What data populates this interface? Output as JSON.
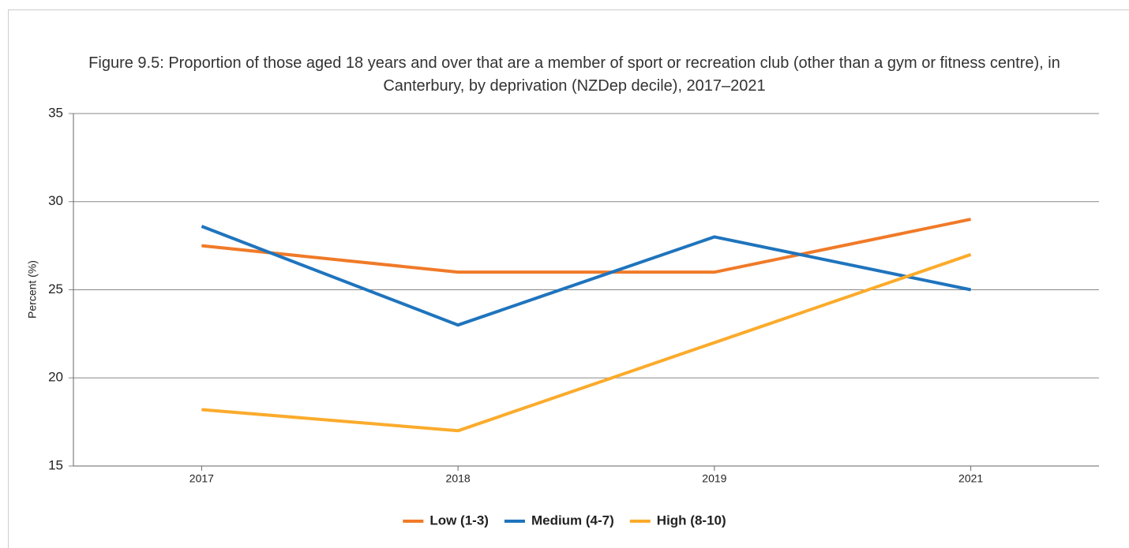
{
  "chart_data": {
    "type": "line",
    "title": "Figure 9.5: Proportion of those aged 18 years and over that are a member of sport or recreation club (other than a gym or fitness centre), in Canterbury, by deprivation (NZDep decile), 2017–2021",
    "ylabel": "Percent (%)",
    "categories": [
      "2017",
      "2018",
      "2019",
      "2021"
    ],
    "series": [
      {
        "name": "Low (1-3)",
        "color": "#f07a28",
        "values": [
          27.5,
          26,
          26,
          29
        ]
      },
      {
        "name": "Medium (4-7)",
        "color": "#1f74bd",
        "values": [
          28.6,
          23,
          28,
          25
        ]
      },
      {
        "name": "High (8-10)",
        "color": "#fbab2c",
        "values": [
          18.2,
          17,
          22,
          27
        ]
      }
    ],
    "ylim": [
      15,
      35
    ],
    "yticks": [
      15,
      20,
      25,
      30,
      35
    ],
    "grid": true,
    "legend": "bottom"
  }
}
